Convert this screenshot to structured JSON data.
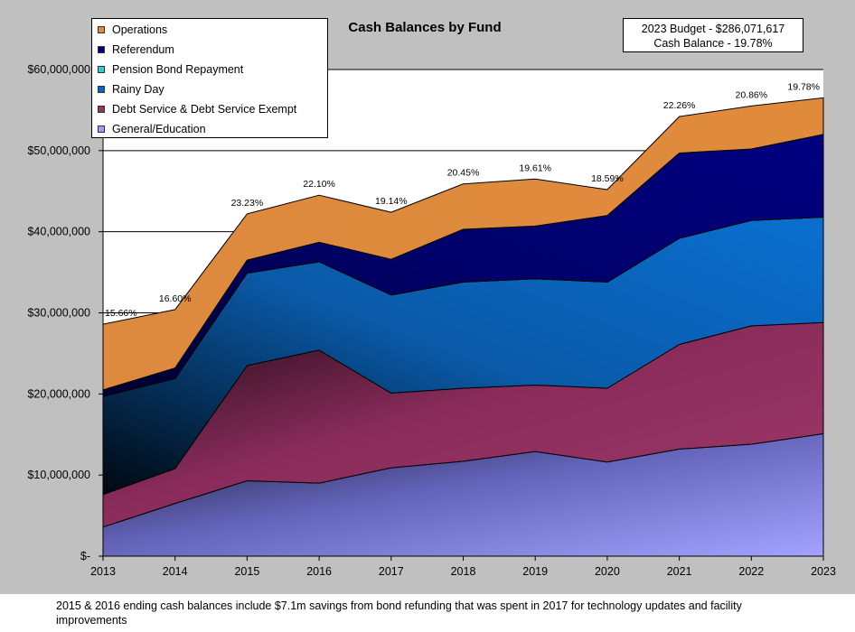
{
  "footnote": "2015 & 2016 ending cash balances include $7.1m savings from bond refunding that was spent in 2017 for technology updates and facility improvements",
  "chart_data": {
    "type": "area",
    "stacked": true,
    "title": "Cash Balances by Fund",
    "budget_box": {
      "line1": "2023 Budget - $286,071,617",
      "line2": "Cash Balance - 19.78%"
    },
    "x": [
      "2013",
      "2014",
      "2015",
      "2016",
      "2017",
      "2018",
      "2019",
      "2020",
      "2021",
      "2022",
      "2023"
    ],
    "ylim": [
      0,
      60000000
    ],
    "yticks": [
      {
        "value": 0,
        "label": "$-"
      },
      {
        "value": 10000000,
        "label": "$10,000,000"
      },
      {
        "value": 20000000,
        "label": "$20,000,000"
      },
      {
        "value": 30000000,
        "label": "$30,000,000"
      },
      {
        "value": 40000000,
        "label": "$40,000,000"
      },
      {
        "value": 50000000,
        "label": "$50,000,000"
      },
      {
        "value": 60000000,
        "label": "$60,000,000"
      }
    ],
    "grid": "horizontal",
    "legend_position": "top-left",
    "series": [
      {
        "name": "General/Education",
        "color": "#9c9cff",
        "values": [
          3600000,
          6500000,
          9300000,
          9000000,
          10900000,
          11700000,
          12900000,
          11600000,
          13200000,
          13800000,
          15100000
        ]
      },
      {
        "name": "Debt Service & Debt Service Exempt",
        "color": "#993366",
        "values": [
          4000000,
          4300000,
          14200000,
          16400000,
          9200000,
          9000000,
          8200000,
          9100000,
          12900000,
          14600000,
          13700000
        ]
      },
      {
        "name": "Rainy Day",
        "color": "#0066cc",
        "values": [
          12100000,
          11100000,
          11400000,
          10900000,
          12100000,
          13100000,
          13100000,
          13100000,
          13100000,
          13000000,
          13000000
        ]
      },
      {
        "name": "Pension Bond Repayment",
        "color": "#33cccc",
        "values": [
          0,
          0,
          0,
          0,
          0,
          0,
          0,
          0,
          0,
          0,
          0
        ]
      },
      {
        "name": "Referendum",
        "color": "#000080",
        "values": [
          800000,
          1300000,
          1600000,
          2400000,
          4400000,
          6500000,
          6500000,
          8200000,
          10500000,
          8800000,
          10200000
        ]
      },
      {
        "name": "Operations",
        "color": "#e08a3c",
        "values": [
          8100000,
          7200000,
          5700000,
          5800000,
          5800000,
          5600000,
          5800000,
          3200000,
          4500000,
          5300000,
          4500000
        ]
      }
    ],
    "legend_order": [
      "Operations",
      "Referendum",
      "Pension Bond Repayment",
      "Rainy Day",
      "Debt Service & Debt Service Exempt",
      "General/Education"
    ],
    "data_labels": [
      "15.66%",
      "16.60%",
      "23.23%",
      "22.10%",
      "19.14%",
      "20.45%",
      "19.61%",
      "18.59%",
      "22.26%",
      "20.86%",
      "19.78%"
    ]
  }
}
